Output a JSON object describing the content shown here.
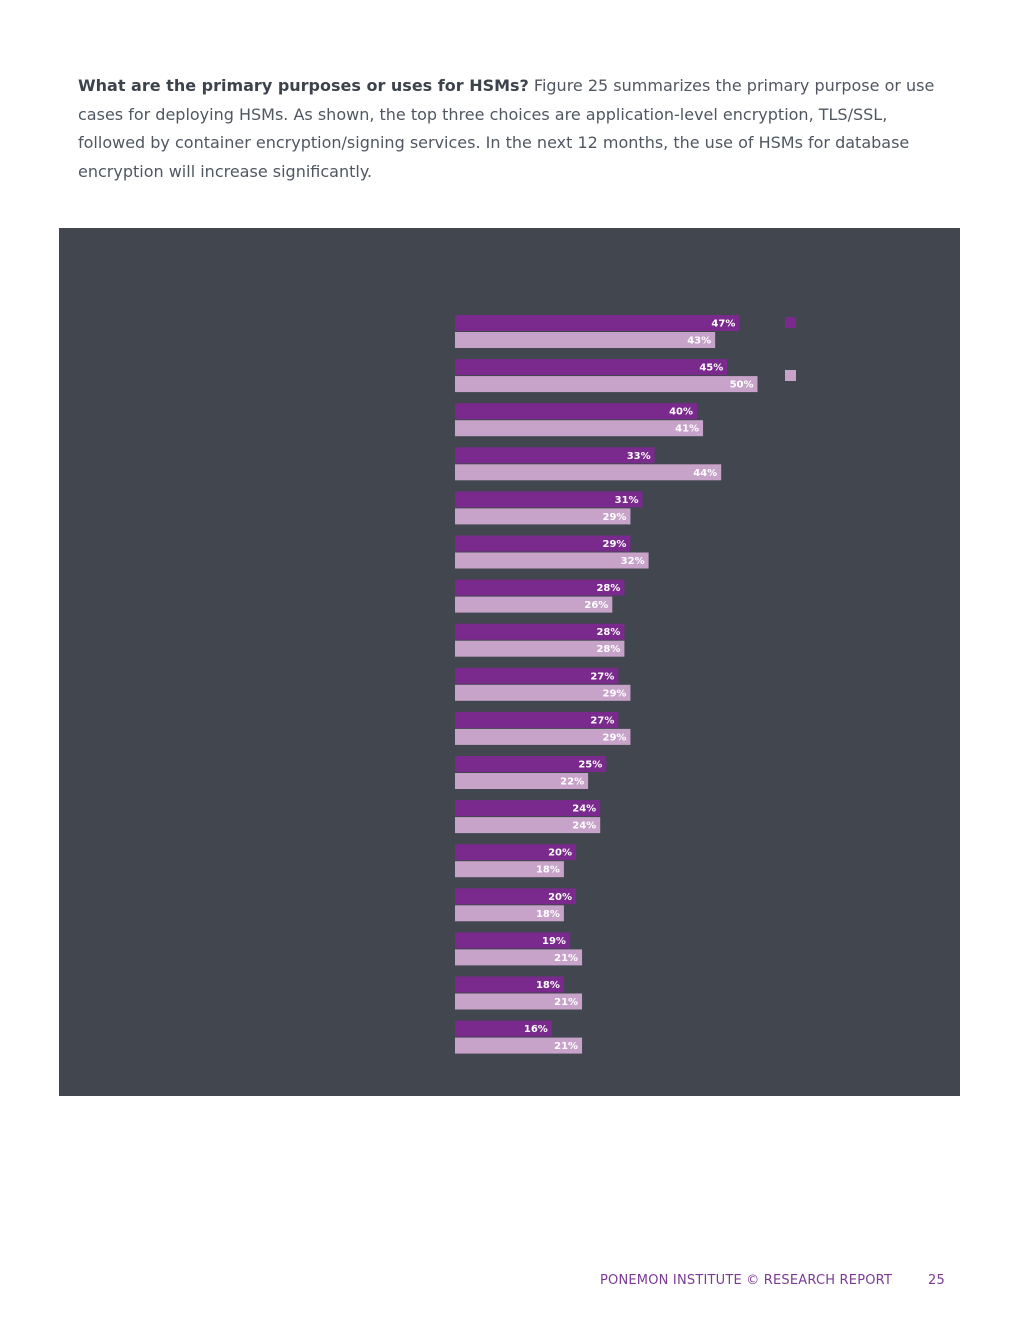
{
  "intro": {
    "heading": "What are the primary purposes or uses for HSMs?",
    "text": " Figure 25 summarizes the primary purpose or use cases for deploying HSMs. As shown, the top three choices are application-level encryption, TLS/SSL, followed by container encryption/signing services. In the next 12 months, the use of HSMs for database encryption will increase significantly."
  },
  "colors": {
    "panel_bg": "#41464f",
    "series_current": "#7a2a8c",
    "series_future": "#c7a3c9"
  },
  "chart_data": {
    "type": "bar",
    "orientation": "horizontal",
    "categories": [
      "",
      "",
      "",
      "",
      "",
      "",
      "",
      "",
      "",
      "",
      "",
      "",
      "",
      "",
      "",
      "",
      ""
    ],
    "series": [
      {
        "values": [
          47,
          45,
          40,
          33,
          31,
          29,
          28,
          28,
          27,
          27,
          25,
          24,
          20,
          20,
          19,
          18,
          16
        ]
      },
      {
        "values": [
          43,
          50,
          41,
          44,
          29,
          32,
          26,
          28,
          29,
          29,
          22,
          24,
          18,
          18,
          21,
          21,
          21
        ]
      }
    ],
    "value_suffix": "%",
    "xlim": [
      0,
      60
    ],
    "legend_position": "right",
    "grid": false
  },
  "footer": {
    "text": "PONEMON INSTITUTE © RESEARCH REPORT",
    "page": "25"
  }
}
